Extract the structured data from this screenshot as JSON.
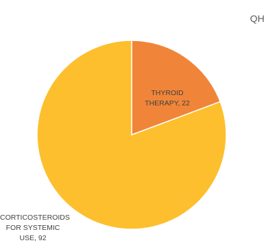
{
  "chart_data": {
    "type": "pie",
    "title": "QH",
    "slices": [
      {
        "label_lines": [
          "THYROID",
          "THERAPY, 22"
        ],
        "value": 22,
        "color": "#F08539"
      },
      {
        "label_lines": [
          "CORTICOSTEROIDS",
          "FOR SYSTEMIC",
          "USE, 92"
        ],
        "value": 92,
        "color": "#FDBF2D"
      }
    ],
    "legend": "none",
    "start_angle_deg": 0,
    "direction": "clockwise",
    "border_color": "#FFFFFF"
  }
}
